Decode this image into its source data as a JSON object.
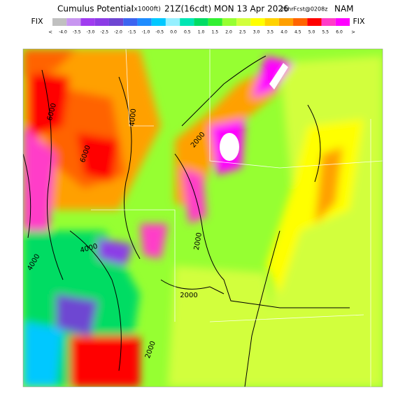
{
  "header": {
    "title": "Cumulus Potential",
    "units": "(x1000ft)",
    "time": "21Z(16cdt) MON 13 Apr 2026",
    "forecast": "21hrFcst@0208z",
    "model": "NAM"
  },
  "colorbar": {
    "left_label": "FIX",
    "right_label": "FIX",
    "lower_arrow": "<",
    "upper_arrow": ">",
    "ticks": [
      "-4.0",
      "-3.5",
      "-3.0",
      "-2.5",
      "-2.0",
      "-1.5",
      "-1.0",
      "-0.5",
      "0.0",
      "0.5",
      "1.0",
      "1.5",
      "2.0",
      "2.5",
      "3.0",
      "3.5",
      "4.0",
      "4.5",
      "5.0",
      "5.5",
      "6.0"
    ],
    "colors": [
      "#c0c0c0",
      "#c896f0",
      "#a03cf0",
      "#8c3ce6",
      "#6e46d2",
      "#3c64f0",
      "#1e8cff",
      "#00c8ff",
      "#96f0ff",
      "#00e6b4",
      "#00dc64",
      "#32f032",
      "#96ff32",
      "#d2ff3c",
      "#ffff00",
      "#ffd200",
      "#ffa000",
      "#ff6400",
      "#ff0000",
      "#ff3cc8",
      "#ff00ff"
    ]
  },
  "contour_labels": [
    "6000",
    "4000",
    "6000",
    "2000",
    "2000",
    "4000",
    "2000",
    "4000",
    "2000"
  ]
}
